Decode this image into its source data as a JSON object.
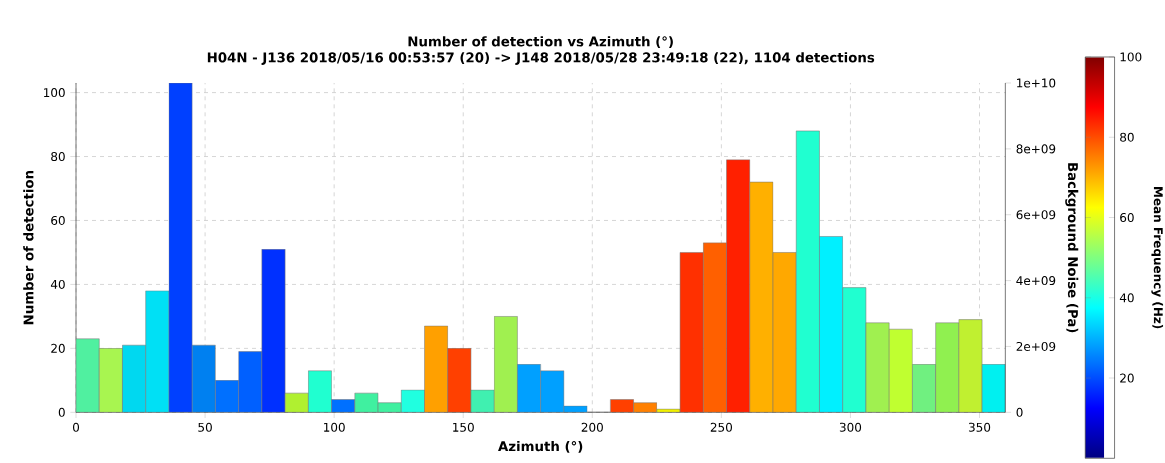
{
  "chart_data": {
    "type": "histogram",
    "title": "Number of detection vs Azimuth (°)",
    "subtitle": "H04N - J136 2018/05/16 00:53:57 (20) -> J148 2018/05/28 23:49:18 (22), 1104 detections",
    "xlabel": "Azimuth (°)",
    "ylabel": "Number of detection",
    "y2label": "Background Noise (Pa)",
    "clabel": "Mean Frequency (Hz)",
    "bins": [
      0,
      9,
      18,
      27,
      36,
      45,
      54,
      63,
      72,
      81,
      90,
      99,
      108,
      117,
      126,
      135,
      144,
      153,
      162,
      171,
      180,
      189,
      198,
      207,
      216,
      225,
      234,
      243,
      252,
      261,
      270,
      279,
      288,
      297,
      306,
      315,
      324,
      333,
      342,
      351,
      360
    ],
    "values": [
      23,
      20,
      21,
      38,
      103,
      21,
      10,
      19,
      51,
      6,
      13,
      4,
      6,
      3,
      7,
      27,
      20,
      7,
      30,
      15,
      13,
      2,
      0,
      4,
      3,
      1,
      50,
      53,
      79,
      72,
      50,
      88,
      55,
      39,
      28,
      26,
      15,
      28,
      29,
      15
    ],
    "colors": [
      "#50f0a0",
      "#a8f550",
      "#00d8f0",
      "#00e0f5",
      "#0040ff",
      "#0080f0",
      "#0070ff",
      "#0060ff",
      "#0030ff",
      "#b0f030",
      "#20ffd0",
      "#0070ff",
      "#40f0a0",
      "#40f0a0",
      "#20ffe0",
      "#ffa000",
      "#ff4000",
      "#40f0b0",
      "#a0f050",
      "#00a0ff",
      "#00a0ff",
      "#00a0ff",
      "#00a0ff",
      "#ff4000",
      "#ff8000",
      "#f0f000",
      "#ff3000",
      "#ff6000",
      "#ff2000",
      "#ffb000",
      "#ffa800",
      "#20ffd0",
      "#00f0ff",
      "#20ffd0",
      "#a0f050",
      "#c0ff30",
      "#70f080",
      "#90f050",
      "#c0f030",
      "#00f0f0"
    ],
    "xlim": [
      0,
      360
    ],
    "xticks": [
      0,
      50,
      100,
      150,
      200,
      250,
      300,
      350
    ],
    "ylim": [
      0,
      103
    ],
    "yticks": [
      0,
      20,
      40,
      60,
      80,
      100
    ],
    "y2lim": [
      0,
      10000000000.0
    ],
    "y2ticks": [
      {
        "value": 0,
        "label": "0"
      },
      {
        "value": 2000000000.0,
        "label": "2e+09"
      },
      {
        "value": 4000000000.0,
        "label": "4e+09"
      },
      {
        "value": 6000000000.0,
        "label": "6e+09"
      },
      {
        "value": 8000000000.0,
        "label": "8e+09"
      },
      {
        "value": 10000000000.0,
        "label": "1e+10"
      }
    ],
    "clim": [
      0,
      100
    ],
    "cticks": [
      20,
      40,
      60,
      80,
      100
    ],
    "grid": true
  }
}
